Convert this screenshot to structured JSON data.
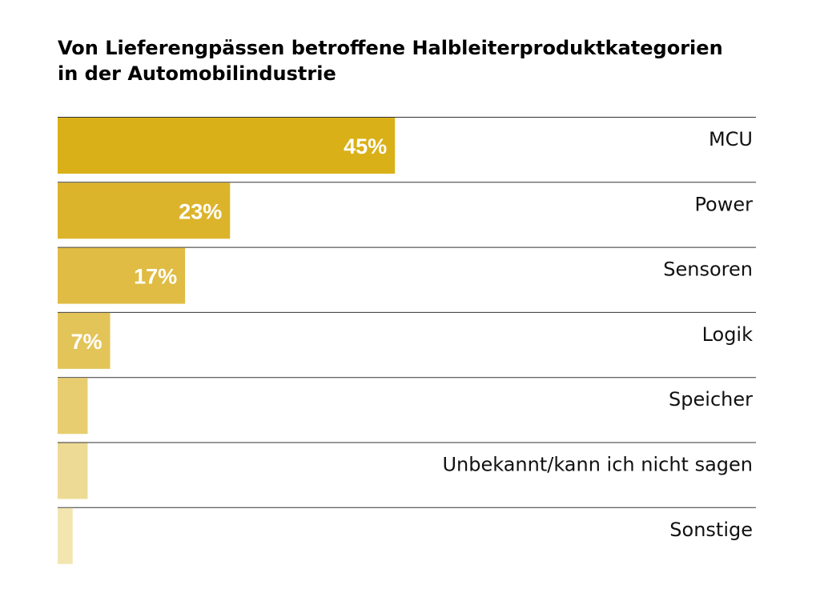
{
  "chart_data": {
    "type": "bar",
    "orientation": "horizontal",
    "title_lines": [
      "Von Lieferengpässen betroffene Halbleiterproduktkategorien",
      "in der Automobilindustrie"
    ],
    "categories": [
      "MCU",
      "Power",
      "Sensoren",
      "Logik",
      "Speicher",
      "Unbekannt/kann ich nicht sagen",
      "Sonstige"
    ],
    "values": [
      45,
      23,
      17,
      7,
      4,
      4,
      2
    ],
    "value_labels": [
      "45%",
      "23%",
      "17%",
      "7%",
      "",
      "",
      ""
    ],
    "unit": "%",
    "xlim": [
      0,
      100
    ],
    "grid": false,
    "legend": "none",
    "colors": [
      "#d9b018",
      "#dcb42c",
      "#e0bc44",
      "#e3c458",
      "#e8cd70",
      "#eddb95",
      "#f3e5b0"
    ],
    "separator_color": "#333333"
  }
}
